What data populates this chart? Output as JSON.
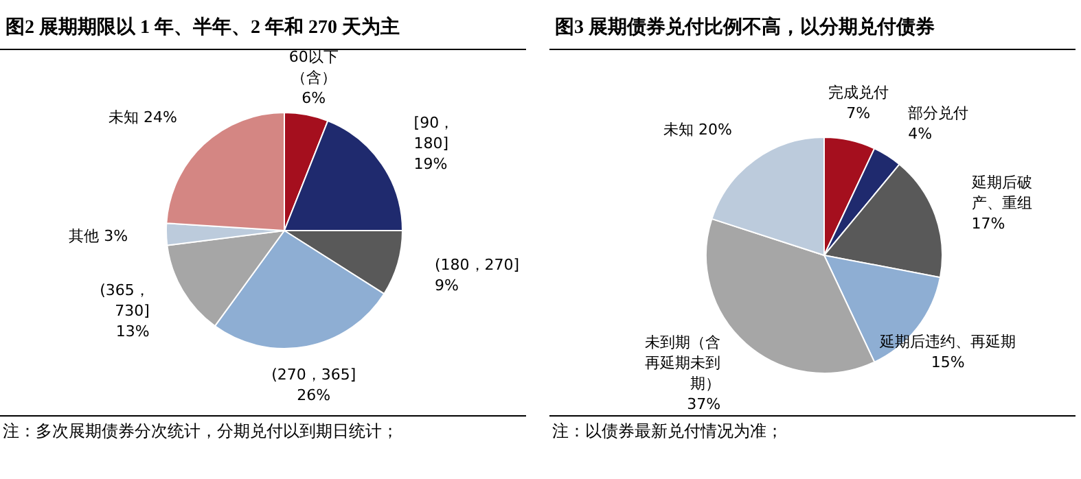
{
  "chart_data": [
    {
      "type": "pie",
      "title": "图2  展期期限以 1 年、半年、2 年和 270 天为主",
      "categories": [
        "60以下（含）",
        "[90，180]",
        "(180，270]",
        "(270，365]",
        "(365，730]",
        "其他",
        "未知"
      ],
      "values": [
        6,
        19,
        9,
        26,
        13,
        3,
        24
      ],
      "value_labels": [
        "6%",
        "19%",
        "9%",
        "26%",
        "13%",
        "3%",
        "24%"
      ],
      "colors": [
        "#a50f1e",
        "#1f2a6e",
        "#595959",
        "#8eaed3",
        "#a6a6a6",
        "#bccbdc",
        "#d48683"
      ],
      "annotations": [
        "注：多次展期债券分次统计，分期兑付以到期日统计；"
      ]
    },
    {
      "type": "pie",
      "title": "图3  展期债券兑付比例不高，以分期兑付债券",
      "categories": [
        "完成兑付",
        "部分兑付",
        "延期后破产、重组",
        "延期后违约、再延期",
        "未到期（含再延期未到期）",
        "未知"
      ],
      "values": [
        7,
        4,
        17,
        15,
        37,
        20
      ],
      "value_labels": [
        "7%",
        "4%",
        "17%",
        "15%",
        "37%",
        "20%"
      ],
      "colors": [
        "#a50f1e",
        "#1f2a6e",
        "#595959",
        "#8eaed3",
        "#a6a6a6",
        "#bccbdc"
      ],
      "annotations": [
        "注：以债券最新兑付情况为准；"
      ]
    }
  ]
}
